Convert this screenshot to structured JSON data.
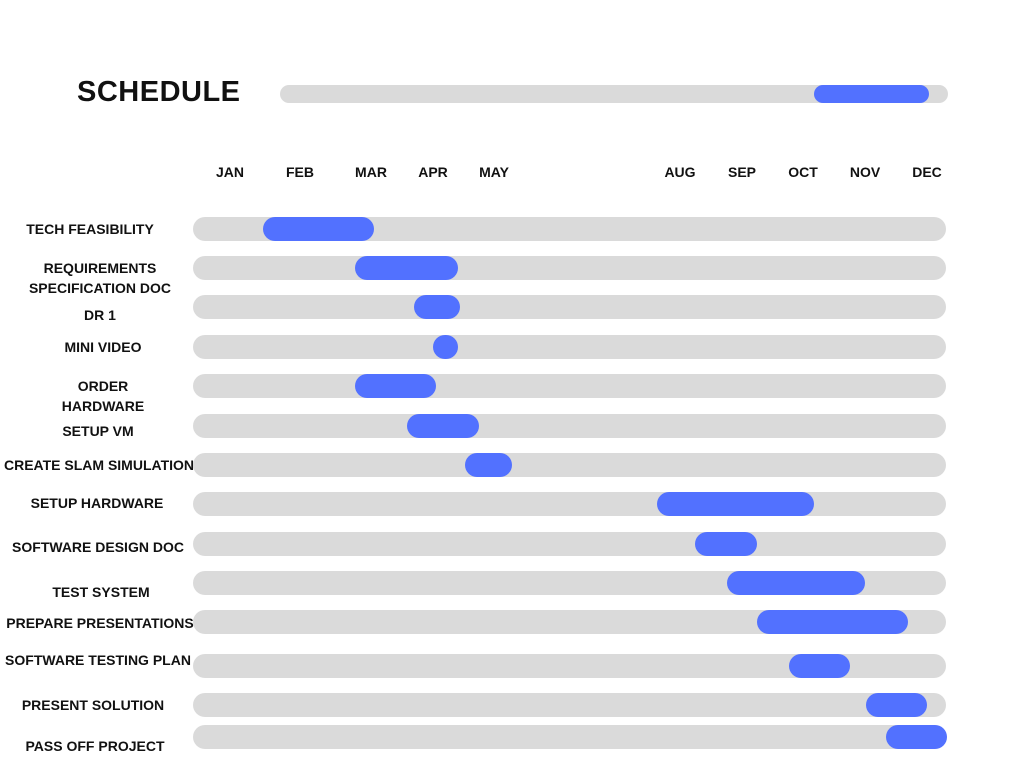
{
  "chart_data": {
    "type": "gantt",
    "title": "SCHEDULE",
    "months": [
      "JAN",
      "FEB",
      "MAR",
      "APR",
      "MAY",
      "AUG",
      "SEP",
      "OCT",
      "NOV",
      "DEC"
    ],
    "tasks": [
      {
        "label": "TECH FEASIBILITY",
        "start": "FEB",
        "end": "MAR"
      },
      {
        "label": "REQUIREMENTS SPECIFICATION DOC",
        "start": "MAR",
        "end": "APR"
      },
      {
        "label": "DR 1",
        "start": "APR",
        "end": "APR"
      },
      {
        "label": "MINI VIDEO",
        "start": "APR",
        "end": "APR"
      },
      {
        "label": "ORDER HARDWARE",
        "start": "MAR",
        "end": "APR"
      },
      {
        "label": "SETUP VM",
        "start": "APR",
        "end": "MAY"
      },
      {
        "label": "CREATE SLAM SIMULATION",
        "start": "MAY",
        "end": "MAY"
      },
      {
        "label": "SETUP HARDWARE",
        "start": "AUG",
        "end": "OCT"
      },
      {
        "label": "SOFTWARE DESIGN DOC",
        "start": "AUG",
        "end": "SEP"
      },
      {
        "label": "TEST SYSTEM",
        "start": "SEP",
        "end": "NOV"
      },
      {
        "label": "PREPARE  PRESENTATIONS",
        "start": "SEP",
        "end": "NOV"
      },
      {
        "label": "SOFTWARE TESTING PLAN",
        "start": "OCT",
        "end": "NOV"
      },
      {
        "label": "PRESENT SOLUTION",
        "start": "NOV",
        "end": "DEC"
      },
      {
        "label": "PASS OFF PROJECT",
        "start": "DEC",
        "end": "DEC"
      }
    ]
  },
  "header_progress": {
    "start": "OCT",
    "end": "DEC"
  },
  "colors": {
    "track": "#dadada",
    "bar": "#5271ff",
    "text": "#111111"
  }
}
